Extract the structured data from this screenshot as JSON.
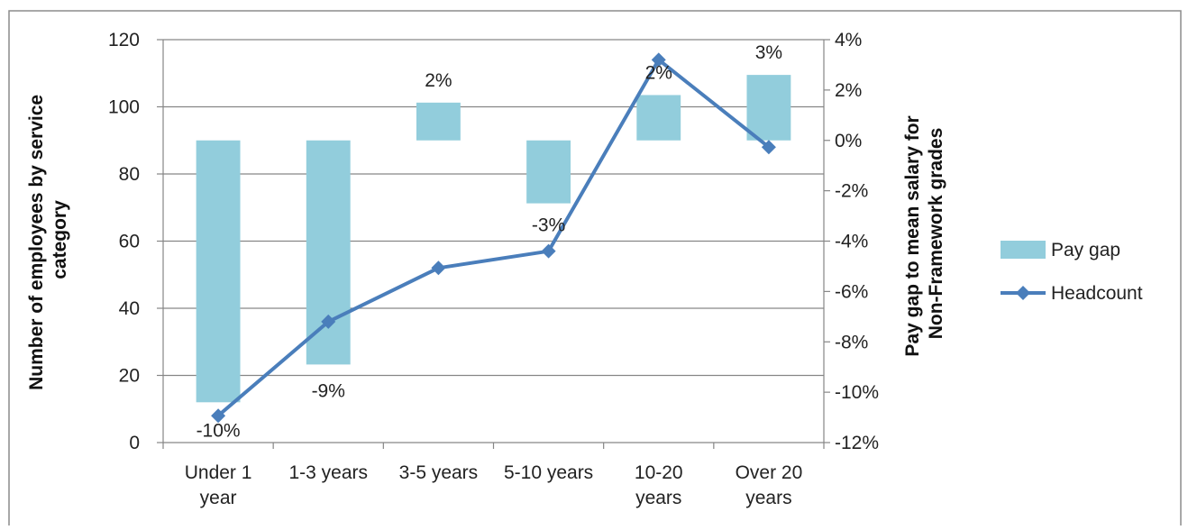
{
  "chart_data": {
    "type": "bar",
    "combo": "bar+line, dual axis",
    "categories": [
      [
        "Under 1",
        "year"
      ],
      [
        "1-3 years"
      ],
      [
        "3-5 years"
      ],
      [
        "5-10 years"
      ],
      [
        "10-20",
        "years"
      ],
      [
        "Over 20",
        "years"
      ]
    ],
    "series": [
      {
        "name": "Pay gap",
        "type": "bar",
        "axis": "right",
        "values": [
          -10.4,
          -8.9,
          1.5,
          -2.5,
          1.8,
          2.6
        ],
        "labels": [
          "-10%",
          "-9%",
          "2%",
          "-3%",
          "2%",
          "3%"
        ],
        "color": "#92CDDC"
      },
      {
        "name": "Headcount",
        "type": "line",
        "axis": "left",
        "marker": "diamond",
        "values": [
          8,
          36,
          52,
          57,
          114,
          88
        ],
        "color": "#4A7EBB"
      }
    ],
    "y_left": {
      "label": [
        "Number of employees by service",
        "category"
      ],
      "ylim": [
        0,
        120
      ],
      "ticks": [
        "0",
        "20",
        "40",
        "60",
        "80",
        "100",
        "120"
      ]
    },
    "y_right": {
      "label": [
        "Pay gap to mean salary for",
        "Non-Framework grades"
      ],
      "ylim": [
        -12,
        4
      ],
      "ticks": [
        "-12%",
        "-10%",
        "-8%",
        "-6%",
        "-4%",
        "-2%",
        "0%",
        "2%",
        "4%"
      ]
    },
    "grid": true,
    "legend_position": "right"
  }
}
